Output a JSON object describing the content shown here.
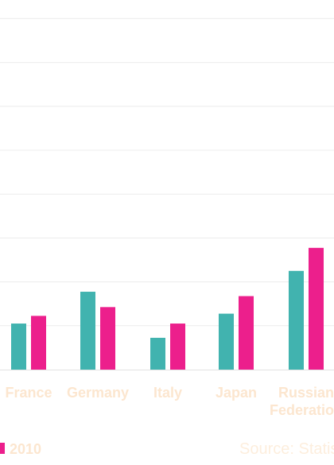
{
  "chart_data": {
    "type": "bar",
    "title": "",
    "xlabel": "",
    "ylabel": "",
    "categories": [
      [
        "France"
      ],
      [
        "Germany"
      ],
      [
        "Italy"
      ],
      [
        "Japan"
      ],
      [
        "Russian",
        "Federation"
      ]
    ],
    "series": [
      {
        "name": "",
        "color": "#41b3af",
        "values": [
          2.1,
          3.55,
          1.45,
          2.55,
          4.5
        ]
      },
      {
        "name": "2010",
        "color": "#ec1f8c",
        "values": [
          2.45,
          2.85,
          2.1,
          3.35,
          5.55
        ]
      }
    ],
    "ylim": [
      0,
      16
    ],
    "grid": true,
    "legend_position": "bottom-left"
  },
  "source": {
    "label": "Source: Statis"
  }
}
